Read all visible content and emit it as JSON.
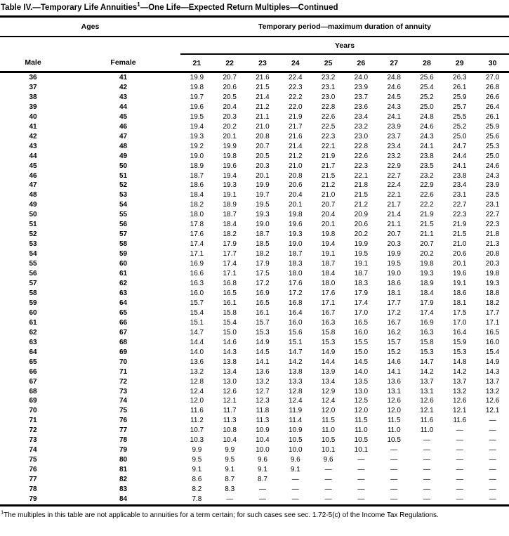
{
  "title": {
    "main": "Table IV.—Temporary Life Annuities",
    "superscript": "1",
    "rest": "—One Life—Expected Return Multiples—Continued"
  },
  "table": {
    "ages_header": "Ages",
    "period_header": "Temporary period—maximum duration of annuity",
    "years_header": "Years",
    "male_header": "Male",
    "female_header": "Female",
    "year_columns": [
      "21",
      "22",
      "23",
      "24",
      "25",
      "26",
      "27",
      "28",
      "29",
      "30"
    ],
    "rows": [
      {
        "male": "36",
        "female": "41",
        "values": [
          "19.9",
          "20.7",
          "21.6",
          "22.4",
          "23.2",
          "24.0",
          "24.8",
          "25.6",
          "26.3",
          "27.0"
        ]
      },
      {
        "male": "37",
        "female": "42",
        "values": [
          "19.8",
          "20.6",
          "21.5",
          "22.3",
          "23.1",
          "23.9",
          "24.6",
          "25.4",
          "26.1",
          "26.8"
        ]
      },
      {
        "male": "38",
        "female": "43",
        "values": [
          "19.7",
          "20.5",
          "21.4",
          "22.2",
          "23.0",
          "23.7",
          "24.5",
          "25.2",
          "25.9",
          "26.6"
        ]
      },
      {
        "male": "39",
        "female": "44",
        "values": [
          "19.6",
          "20.4",
          "21.2",
          "22.0",
          "22.8",
          "23.6",
          "24.3",
          "25.0",
          "25.7",
          "26.4"
        ]
      },
      {
        "male": "40",
        "female": "45",
        "values": [
          "19.5",
          "20.3",
          "21.1",
          "21.9",
          "22.6",
          "23.4",
          "24.1",
          "24.8",
          "25.5",
          "26.1"
        ]
      },
      {
        "male": "41",
        "female": "46",
        "values": [
          "19.4",
          "20.2",
          "21.0",
          "21.7",
          "22.5",
          "23.2",
          "23.9",
          "24.6",
          "25.2",
          "25.9"
        ]
      },
      {
        "male": "42",
        "female": "47",
        "values": [
          "19.3",
          "20.1",
          "20.8",
          "21.6",
          "22.3",
          "23.0",
          "23.7",
          "24.3",
          "25.0",
          "25.6"
        ]
      },
      {
        "male": "43",
        "female": "48",
        "values": [
          "19.2",
          "19.9",
          "20.7",
          "21.4",
          "22.1",
          "22.8",
          "23.4",
          "24.1",
          "24.7",
          "25.3"
        ]
      },
      {
        "male": "44",
        "female": "49",
        "values": [
          "19.0",
          "19.8",
          "20.5",
          "21.2",
          "21.9",
          "22.6",
          "23.2",
          "23.8",
          "24.4",
          "25.0"
        ]
      },
      {
        "male": "45",
        "female": "50",
        "values": [
          "18.9",
          "19.6",
          "20.3",
          "21.0",
          "21.7",
          "22.3",
          "22.9",
          "23.5",
          "24.1",
          "24.6"
        ]
      },
      {
        "male": "46",
        "female": "51",
        "values": [
          "18.7",
          "19.4",
          "20.1",
          "20.8",
          "21.5",
          "22.1",
          "22.7",
          "23.2",
          "23.8",
          "24.3"
        ]
      },
      {
        "male": "47",
        "female": "52",
        "values": [
          "18.6",
          "19.3",
          "19.9",
          "20.6",
          "21.2",
          "21.8",
          "22.4",
          "22.9",
          "23.4",
          "23.9"
        ]
      },
      {
        "male": "48",
        "female": "53",
        "values": [
          "18.4",
          "19.1",
          "19.7",
          "20.4",
          "21.0",
          "21.5",
          "22.1",
          "22.6",
          "23.1",
          "23.5"
        ]
      },
      {
        "male": "49",
        "female": "54",
        "values": [
          "18.2",
          "18.9",
          "19.5",
          "20.1",
          "20.7",
          "21.2",
          "21.7",
          "22.2",
          "22.7",
          "23.1"
        ]
      },
      {
        "male": "50",
        "female": "55",
        "values": [
          "18.0",
          "18.7",
          "19.3",
          "19.8",
          "20.4",
          "20.9",
          "21.4",
          "21.9",
          "22.3",
          "22.7"
        ]
      },
      {
        "male": "51",
        "female": "56",
        "values": [
          "17.8",
          "18.4",
          "19.0",
          "19.6",
          "20.1",
          "20.6",
          "21.1",
          "21.5",
          "21.9",
          "22.3"
        ]
      },
      {
        "male": "52",
        "female": "57",
        "values": [
          "17.6",
          "18.2",
          "18.7",
          "19.3",
          "19.8",
          "20.2",
          "20.7",
          "21.1",
          "21.5",
          "21.8"
        ]
      },
      {
        "male": "53",
        "female": "58",
        "values": [
          "17.4",
          "17.9",
          "18.5",
          "19.0",
          "19.4",
          "19.9",
          "20.3",
          "20.7",
          "21.0",
          "21.3"
        ]
      },
      {
        "male": "54",
        "female": "59",
        "values": [
          "17.1",
          "17.7",
          "18.2",
          "18.7",
          "19.1",
          "19.5",
          "19.9",
          "20.2",
          "20.6",
          "20.8"
        ]
      },
      {
        "male": "55",
        "female": "60",
        "values": [
          "16.9",
          "17.4",
          "17.9",
          "18.3",
          "18.7",
          "19.1",
          "19.5",
          "19.8",
          "20.1",
          "20.3"
        ]
      },
      {
        "male": "56",
        "female": "61",
        "values": [
          "16.6",
          "17.1",
          "17.5",
          "18.0",
          "18.4",
          "18.7",
          "19.0",
          "19.3",
          "19.6",
          "19.8"
        ]
      },
      {
        "male": "57",
        "female": "62",
        "values": [
          "16.3",
          "16.8",
          "17.2",
          "17.6",
          "18.0",
          "18.3",
          "18.6",
          "18.9",
          "19.1",
          "19.3"
        ]
      },
      {
        "male": "58",
        "female": "63",
        "values": [
          "16.0",
          "16.5",
          "16.9",
          "17.2",
          "17.6",
          "17.9",
          "18.1",
          "18.4",
          "18.6",
          "18.8"
        ]
      },
      {
        "male": "59",
        "female": "64",
        "values": [
          "15.7",
          "16.1",
          "16.5",
          "16.8",
          "17.1",
          "17.4",
          "17.7",
          "17.9",
          "18.1",
          "18.2"
        ]
      },
      {
        "male": "60",
        "female": "65",
        "values": [
          "15.4",
          "15.8",
          "16.1",
          "16.4",
          "16.7",
          "17.0",
          "17.2",
          "17.4",
          "17.5",
          "17.7"
        ]
      },
      {
        "male": "61",
        "female": "66",
        "values": [
          "15.1",
          "15.4",
          "15.7",
          "16.0",
          "16.3",
          "16.5",
          "16.7",
          "16.9",
          "17.0",
          "17.1"
        ]
      },
      {
        "male": "62",
        "female": "67",
        "values": [
          "14.7",
          "15.0",
          "15.3",
          "15.6",
          "15.8",
          "16.0",
          "16.2",
          "16.3",
          "16.4",
          "16.5"
        ]
      },
      {
        "male": "63",
        "female": "68",
        "values": [
          "14.4",
          "14.6",
          "14.9",
          "15.1",
          "15.3",
          "15.5",
          "15.7",
          "15.8",
          "15.9",
          "16.0"
        ]
      },
      {
        "male": "64",
        "female": "69",
        "values": [
          "14.0",
          "14.3",
          "14.5",
          "14.7",
          "14.9",
          "15.0",
          "15.2",
          "15.3",
          "15.3",
          "15.4"
        ]
      },
      {
        "male": "65",
        "female": "70",
        "values": [
          "13.6",
          "13.8",
          "14.1",
          "14.2",
          "14.4",
          "14.5",
          "14.6",
          "14.7",
          "14.8",
          "14.9"
        ]
      },
      {
        "male": "66",
        "female": "71",
        "values": [
          "13.2",
          "13.4",
          "13.6",
          "13.8",
          "13.9",
          "14.0",
          "14.1",
          "14.2",
          "14.2",
          "14.3"
        ]
      },
      {
        "male": "67",
        "female": "72",
        "values": [
          "12.8",
          "13.0",
          "13.2",
          "13.3",
          "13.4",
          "13.5",
          "13.6",
          "13.7",
          "13.7",
          "13.7"
        ]
      },
      {
        "male": "68",
        "female": "73",
        "values": [
          "12.4",
          "12.6",
          "12.7",
          "12.8",
          "12.9",
          "13.0",
          "13.1",
          "13.1",
          "13.2",
          "13.2"
        ]
      },
      {
        "male": "69",
        "female": "74",
        "values": [
          "12.0",
          "12.1",
          "12.3",
          "12.4",
          "12.4",
          "12.5",
          "12.6",
          "12.6",
          "12.6",
          "12.6"
        ]
      },
      {
        "male": "70",
        "female": "75",
        "values": [
          "11.6",
          "11.7",
          "11.8",
          "11.9",
          "12.0",
          "12.0",
          "12.0",
          "12.1",
          "12.1",
          "12.1"
        ]
      },
      {
        "male": "71",
        "female": "76",
        "values": [
          "11.2",
          "11.3",
          "11.3",
          "11.4",
          "11.5",
          "11.5",
          "11.5",
          "11.6",
          "11.6",
          "—"
        ]
      },
      {
        "male": "72",
        "female": "77",
        "values": [
          "10.7",
          "10.8",
          "10.9",
          "10.9",
          "11.0",
          "11.0",
          "11.0",
          "11.0",
          "—",
          "—"
        ]
      },
      {
        "male": "73",
        "female": "78",
        "values": [
          "10.3",
          "10.4",
          "10.4",
          "10.5",
          "10.5",
          "10.5",
          "10.5",
          "—",
          "—",
          "—"
        ]
      },
      {
        "male": "74",
        "female": "79",
        "values": [
          "9.9",
          "9.9",
          "10.0",
          "10.0",
          "10.1",
          "10.1",
          "—",
          "—",
          "—",
          "—"
        ]
      },
      {
        "male": "75",
        "female": "80",
        "values": [
          "9.5",
          "9.5",
          "9.6",
          "9.6",
          "9.6",
          "—",
          "—",
          "—",
          "—",
          "—"
        ]
      },
      {
        "male": "76",
        "female": "81",
        "values": [
          "9.1",
          "9.1",
          "9.1",
          "9.1",
          "—",
          "—",
          "—",
          "—",
          "—",
          "—"
        ]
      },
      {
        "male": "77",
        "female": "82",
        "values": [
          "8.6",
          "8.7",
          "8.7",
          "—",
          "—",
          "—",
          "—",
          "—",
          "—",
          "—"
        ]
      },
      {
        "male": "78",
        "female": "83",
        "values": [
          "8.2",
          "8.3",
          "—",
          "—",
          "—",
          "—",
          "—",
          "—",
          "—",
          "—"
        ]
      },
      {
        "male": "79",
        "female": "84",
        "values": [
          "7.8",
          "—",
          "—",
          "—",
          "—",
          "—",
          "—",
          "—",
          "—",
          "—"
        ]
      }
    ]
  },
  "footnote": {
    "marker": "1",
    "text": "The multiples in this table are not applicable to annuities for a term certain; for such cases see sec. 1.72-5(c) of the Income Tax Regulations."
  }
}
